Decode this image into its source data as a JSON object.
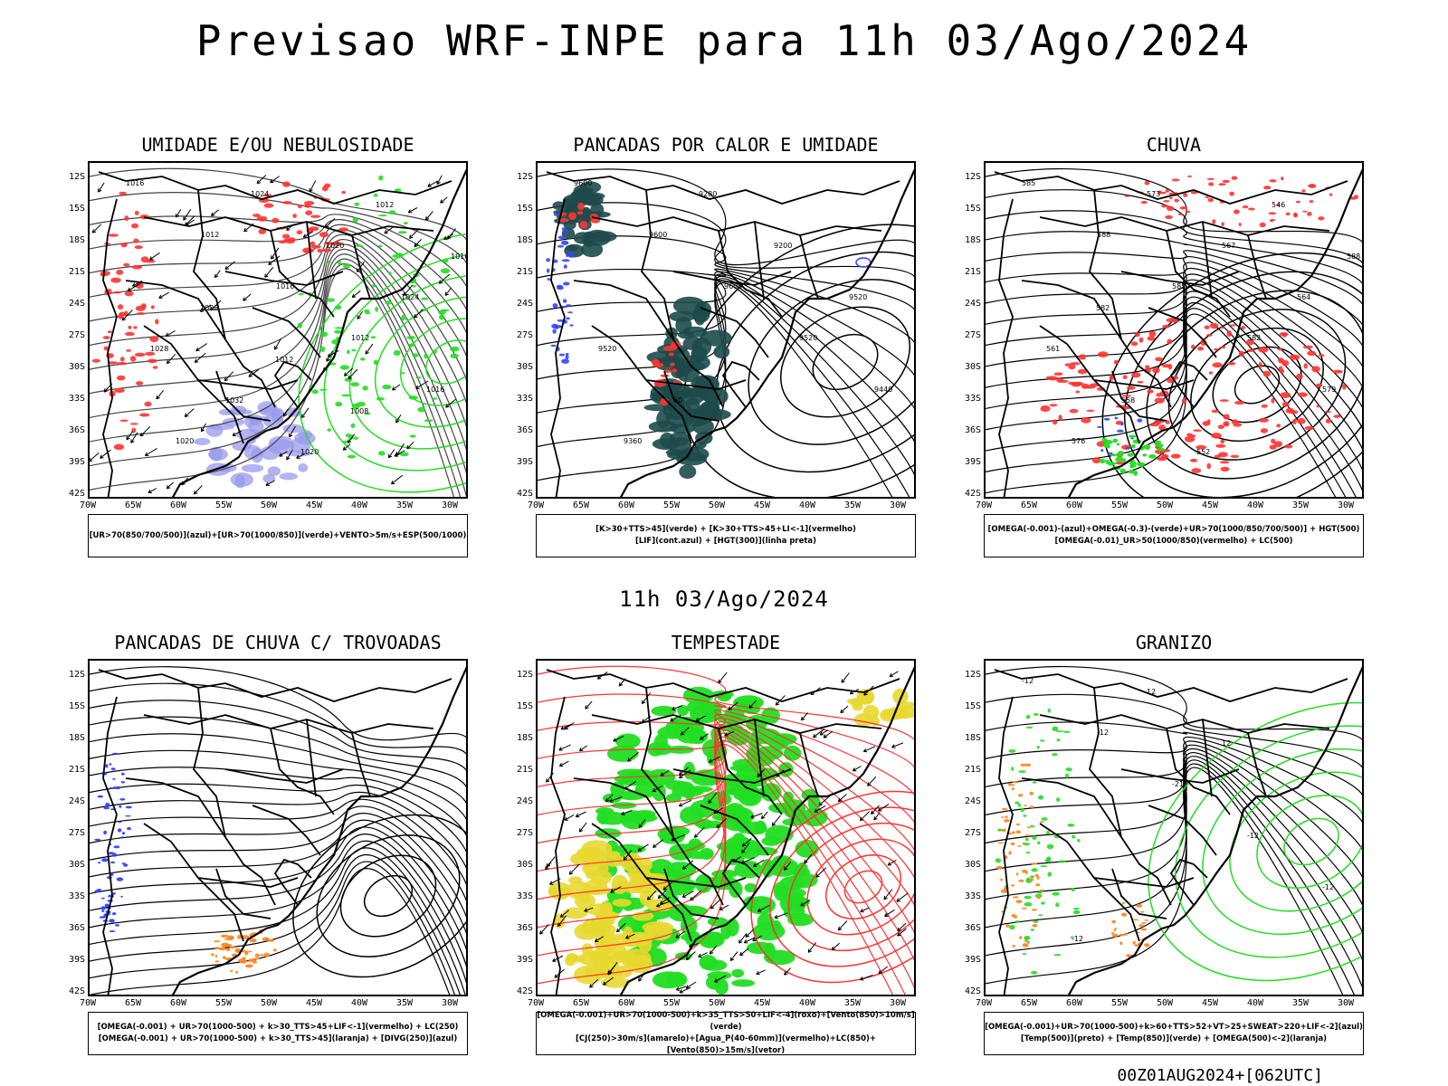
{
  "title": "Previsao WRF-INPE  para 11h 03/Ago/2024",
  "subtitle": "11h 03/Ago/2024",
  "footer": "00Z01AUG2024+[062UTC]",
  "lat_labels": [
    "12S",
    "15S",
    "18S",
    "21S",
    "24S",
    "27S",
    "30S",
    "33S",
    "36S",
    "39S",
    "42S"
  ],
  "lon_labels": [
    "70W",
    "65W",
    "60W",
    "55W",
    "50W",
    "45W",
    "40W",
    "35W",
    "30W"
  ],
  "colors": {
    "blue": "#3344ff",
    "green": "#22dd22",
    "red": "#ff3333",
    "orange": "#ff8822",
    "yellow": "#e8d830",
    "darkteal": "#1d4a4a",
    "lavender": "#9999ee"
  },
  "panels": [
    {
      "title": "UMIDADE E/OU NEBULOSIDADE",
      "legend": [
        "[UR>70(850/700/500)](azul)+[UR>70(1000/850)](verde)+VENTO>5m/s+ESP(500/1000)"
      ],
      "contour_labels": [
        "1016",
        "1012",
        "1016",
        "1012",
        "1016",
        "1020",
        "1024",
        "1020",
        "1024",
        "1028",
        "1032",
        "1020",
        "1012",
        "1016",
        "1008",
        "1012",
        "1008"
      ]
    },
    {
      "title": "PANCADAS POR CALOR E UMIDADE",
      "legend": [
        "[K>30+TTS>45](verde) + [K>30+TTS>45+LI<-1](vermelho)",
        "[LIF](cont.azul) + [HGT(300)](linha preta)"
      ],
      "contour_labels": [
        "9600",
        "9600",
        "9600",
        "9520",
        "9440",
        "9360",
        "9280",
        "9200",
        "9520",
        "9520",
        "60"
      ]
    },
    {
      "title": "CHUVA",
      "legend": [
        "[OMEGA(-0.001)-(azul)+OMEGA(-0.3)-(verde)+UR>70(1000/850/700/500)] + HGT(500)",
        "[OMEGA(-0.01)_UR>50(1000/850)(vermelho) + LC(500)"
      ],
      "contour_labels": [
        "585",
        "588",
        "585",
        "582",
        "579",
        "576",
        "573",
        "567",
        "564",
        "561",
        "558",
        "552",
        "546",
        "588",
        "582"
      ]
    },
    {
      "title": "PANCADAS DE CHUVA C/ TROVOADAS",
      "legend": [
        "[OMEGA(-0.001) + UR>70(1000-500) + k>30_TTS>45+LIF<-1](vermelho) + LC(250)",
        "[OMEGA(-0.001) + UR>70(1000-500) + k>30_TTS>45](laranja) + [DIVG(250)](azul)"
      ],
      "contour_labels": []
    },
    {
      "title": "TEMPESTADE",
      "legend": [
        "[OMEGA(-0.001)+UR>70(1000-500)+k>35_TTS>50+LIF<-4](roxo)+[Vento(850)>10m/s](verde)",
        "[CJ(250)>30m/s](amarelo)+[Agua_P(40-60mm)](vermelho)+LC(850)+[Vento(850)>15m/s](vetor)"
      ],
      "contour_labels": []
    },
    {
      "title": "GRANIZO",
      "legend": [
        "[OMEGA(-0.001)+UR>70(1000-500)+k>60+TTS>52+VT>25+SWEAT>220+LIF<-2](azul)",
        "[Temp(500)](preto) + [Temp(850)](verde) + [OMEGA(500)<-2](laranja)"
      ],
      "contour_labels": [
        "-12",
        "-12",
        "-21",
        "-12",
        "-12",
        "-12",
        "12",
        "12"
      ]
    }
  ]
}
